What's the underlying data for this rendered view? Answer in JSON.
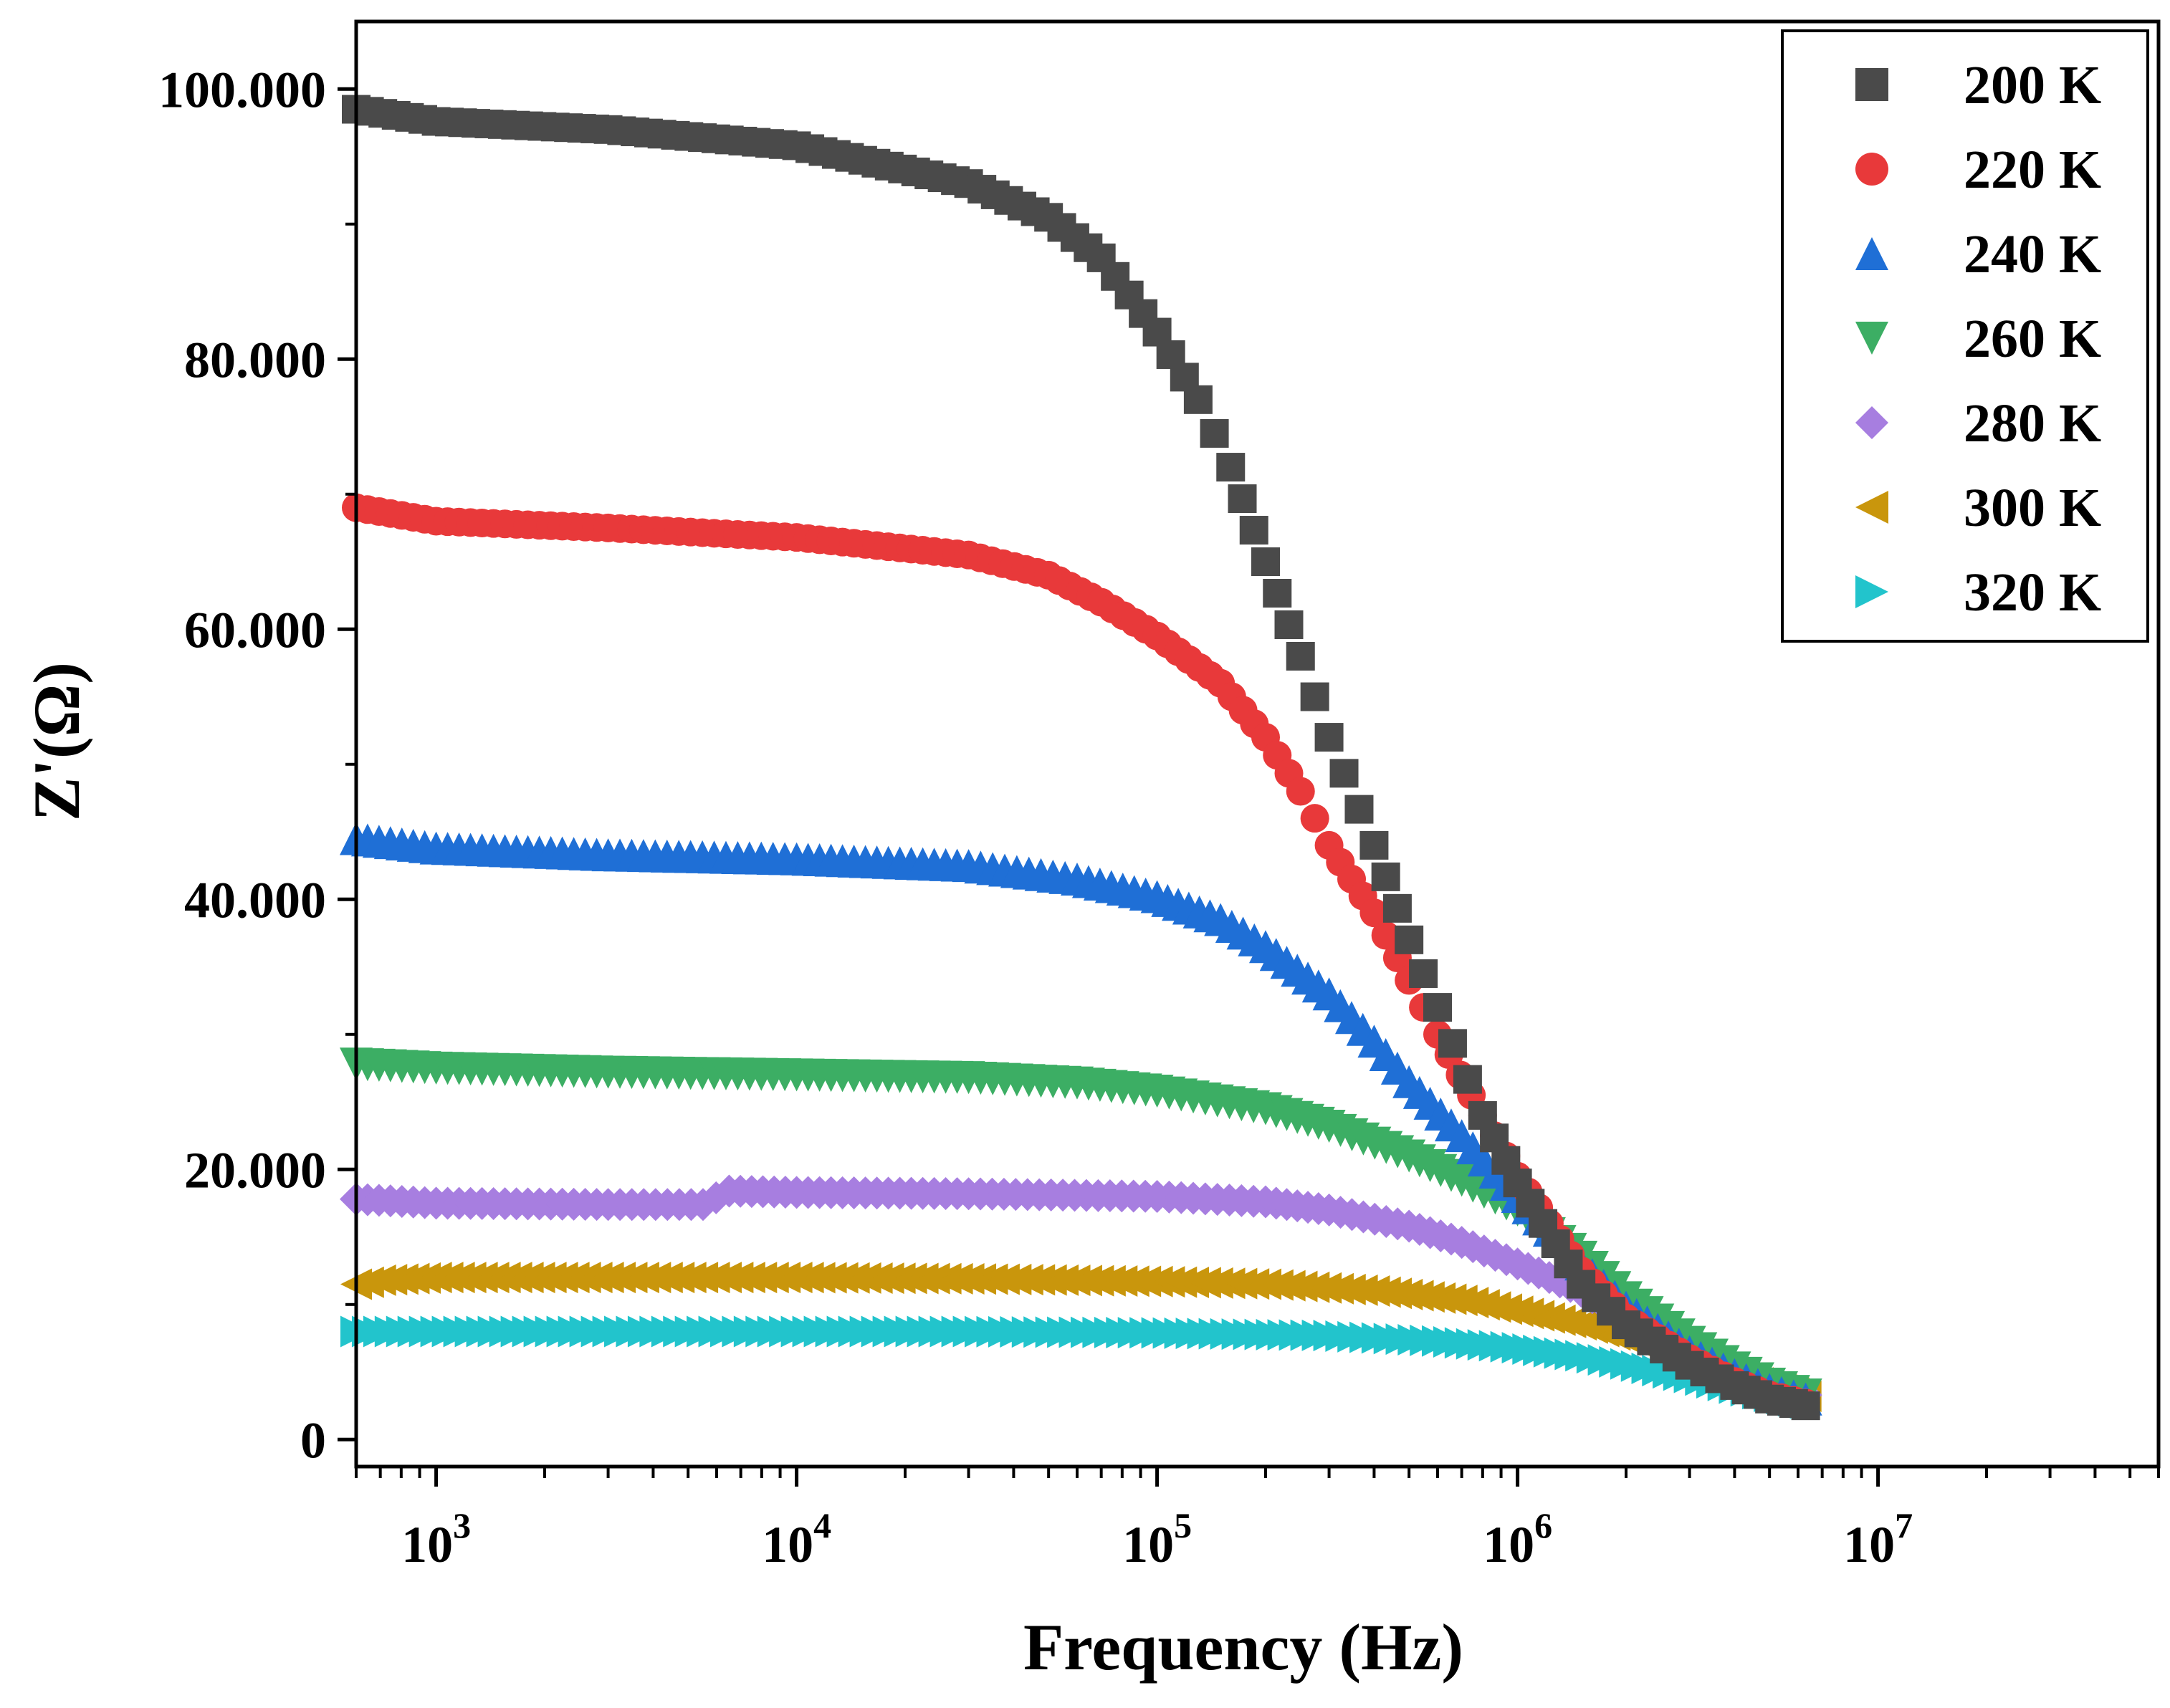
{
  "chart_data": {
    "type": "scatter",
    "title": "",
    "xlabel": "Frequency (Hz)",
    "ylabel": "Z'(Ω)",
    "xscale": "log",
    "xlim": [
      600,
      60000000
    ],
    "ylim": [
      -2000,
      105000
    ],
    "legend_position": "top-right",
    "grid": false,
    "x_ticks": [
      {
        "value": 1000,
        "base": "10",
        "exp": "3"
      },
      {
        "value": 10000,
        "base": "10",
        "exp": "4"
      },
      {
        "value": 100000,
        "base": "10",
        "exp": "5"
      },
      {
        "value": 1000000,
        "base": "10",
        "exp": "6"
      },
      {
        "value": 10000000,
        "base": "10",
        "exp": "7"
      }
    ],
    "y_ticks": [
      {
        "value": 0,
        "label": "0"
      },
      {
        "value": 20000,
        "label": "20.000"
      },
      {
        "value": 40000,
        "label": "40.000"
      },
      {
        "value": 60000,
        "label": "60.000"
      },
      {
        "value": 80000,
        "label": "80.000"
      },
      {
        "value": 100000,
        "label": "100.000"
      }
    ],
    "series": [
      {
        "name": "200 K",
        "marker": "square",
        "color": "#4a4a4a",
        "points": [
          [
            600,
            98500
          ],
          [
            1000,
            97600
          ],
          [
            3000,
            97000
          ],
          [
            10000,
            95800
          ],
          [
            30000,
            93000
          ],
          [
            50000,
            90500
          ],
          [
            70000,
            87500
          ],
          [
            100000,
            82000
          ],
          [
            130000,
            77000
          ],
          [
            160000,
            72000
          ],
          [
            200000,
            65000
          ],
          [
            250000,
            58000
          ],
          [
            300000,
            52000
          ],
          [
            400000,
            44000
          ],
          [
            500000,
            37000
          ],
          [
            600000,
            32000
          ],
          [
            800000,
            24000
          ],
          [
            1000000,
            19000
          ],
          [
            1500000,
            11500
          ],
          [
            2000000,
            8500
          ],
          [
            3000000,
            5500
          ],
          [
            4000000,
            4000
          ],
          [
            5000000,
            3000
          ],
          [
            6300000,
            2500
          ]
        ]
      },
      {
        "name": "220 K",
        "marker": "circle",
        "color": "#e8393a",
        "points": [
          [
            600,
            69000
          ],
          [
            1000,
            68000
          ],
          [
            3000,
            67500
          ],
          [
            10000,
            66800
          ],
          [
            30000,
            65500
          ],
          [
            50000,
            64000
          ],
          [
            70000,
            62000
          ],
          [
            100000,
            59500
          ],
          [
            150000,
            56000
          ],
          [
            200000,
            52000
          ],
          [
            250000,
            48000
          ],
          [
            300000,
            44000
          ],
          [
            400000,
            39000
          ],
          [
            500000,
            34000
          ],
          [
            600000,
            30000
          ],
          [
            800000,
            24000
          ],
          [
            1000000,
            19500
          ],
          [
            1500000,
            12500
          ],
          [
            2000000,
            9000
          ],
          [
            3000000,
            6000
          ],
          [
            4000000,
            4300
          ],
          [
            5000000,
            3300
          ],
          [
            6300000,
            2700
          ]
        ]
      },
      {
        "name": "240 K",
        "marker": "triangle-up",
        "color": "#1f6fd6",
        "points": [
          [
            600,
            44500
          ],
          [
            1000,
            43800
          ],
          [
            3000,
            43300
          ],
          [
            10000,
            43000
          ],
          [
            30000,
            42500
          ],
          [
            60000,
            41500
          ],
          [
            100000,
            40200
          ],
          [
            150000,
            38500
          ],
          [
            200000,
            36500
          ],
          [
            300000,
            33000
          ],
          [
            400000,
            29500
          ],
          [
            500000,
            26500
          ],
          [
            700000,
            22500
          ],
          [
            1000000,
            18000
          ],
          [
            1500000,
            13000
          ],
          [
            2000000,
            9800
          ],
          [
            3000000,
            6500
          ],
          [
            4000000,
            4800
          ],
          [
            5000000,
            3700
          ],
          [
            6300000,
            3000
          ]
        ]
      },
      {
        "name": "260 K",
        "marker": "triangle-down",
        "color": "#3cae64",
        "points": [
          [
            600,
            27800
          ],
          [
            1000,
            27500
          ],
          [
            3000,
            27200
          ],
          [
            10000,
            27000
          ],
          [
            30000,
            26800
          ],
          [
            60000,
            26400
          ],
          [
            100000,
            25800
          ],
          [
            200000,
            24500
          ],
          [
            300000,
            23200
          ],
          [
            500000,
            21000
          ],
          [
            700000,
            19200
          ],
          [
            1000000,
            17000
          ],
          [
            1500000,
            13500
          ],
          [
            2000000,
            10500
          ],
          [
            3000000,
            7200
          ],
          [
            4000000,
            5300
          ],
          [
            5000000,
            4100
          ],
          [
            6300000,
            3300
          ]
        ]
      },
      {
        "name": "280 K",
        "marker": "diamond",
        "color": "#a77ee0",
        "points": [
          [
            600,
            17800
          ],
          [
            1000,
            17500
          ],
          [
            3000,
            17400
          ],
          [
            5500,
            17400
          ],
          [
            6500,
            18400
          ],
          [
            10000,
            18300
          ],
          [
            30000,
            18200
          ],
          [
            100000,
            18000
          ],
          [
            200000,
            17600
          ],
          [
            300000,
            17000
          ],
          [
            500000,
            15800
          ],
          [
            700000,
            14600
          ],
          [
            1000000,
            13000
          ],
          [
            1500000,
            11000
          ],
          [
            2000000,
            9000
          ],
          [
            3000000,
            6800
          ],
          [
            4000000,
            5200
          ],
          [
            5000000,
            4100
          ],
          [
            6300000,
            3300
          ]
        ]
      },
      {
        "name": "300 K",
        "marker": "triangle-left",
        "color": "#c9960c",
        "points": [
          [
            600,
            11500
          ],
          [
            700,
            11800
          ],
          [
            1000,
            12000
          ],
          [
            3000,
            12000
          ],
          [
            10000,
            12000
          ],
          [
            30000,
            11900
          ],
          [
            100000,
            11700
          ],
          [
            200000,
            11500
          ],
          [
            400000,
            11000
          ],
          [
            700000,
            10300
          ],
          [
            1000000,
            9500
          ],
          [
            1500000,
            8500
          ],
          [
            2000000,
            7500
          ],
          [
            3000000,
            6000
          ],
          [
            4000000,
            4800
          ],
          [
            5000000,
            3900
          ],
          [
            6300000,
            3200
          ]
        ]
      },
      {
        "name": "320 K",
        "marker": "triangle-right",
        "color": "#22c4cc",
        "points": [
          [
            600,
            8000
          ],
          [
            1000,
            8000
          ],
          [
            3000,
            8000
          ],
          [
            10000,
            8000
          ],
          [
            30000,
            8000
          ],
          [
            100000,
            7900
          ],
          [
            300000,
            7700
          ],
          [
            600000,
            7300
          ],
          [
            1000000,
            6800
          ],
          [
            1500000,
            6200
          ],
          [
            2000000,
            5600
          ],
          [
            3000000,
            4600
          ],
          [
            4000000,
            3800
          ],
          [
            5000000,
            3200
          ],
          [
            6300000,
            2700
          ]
        ]
      }
    ]
  }
}
